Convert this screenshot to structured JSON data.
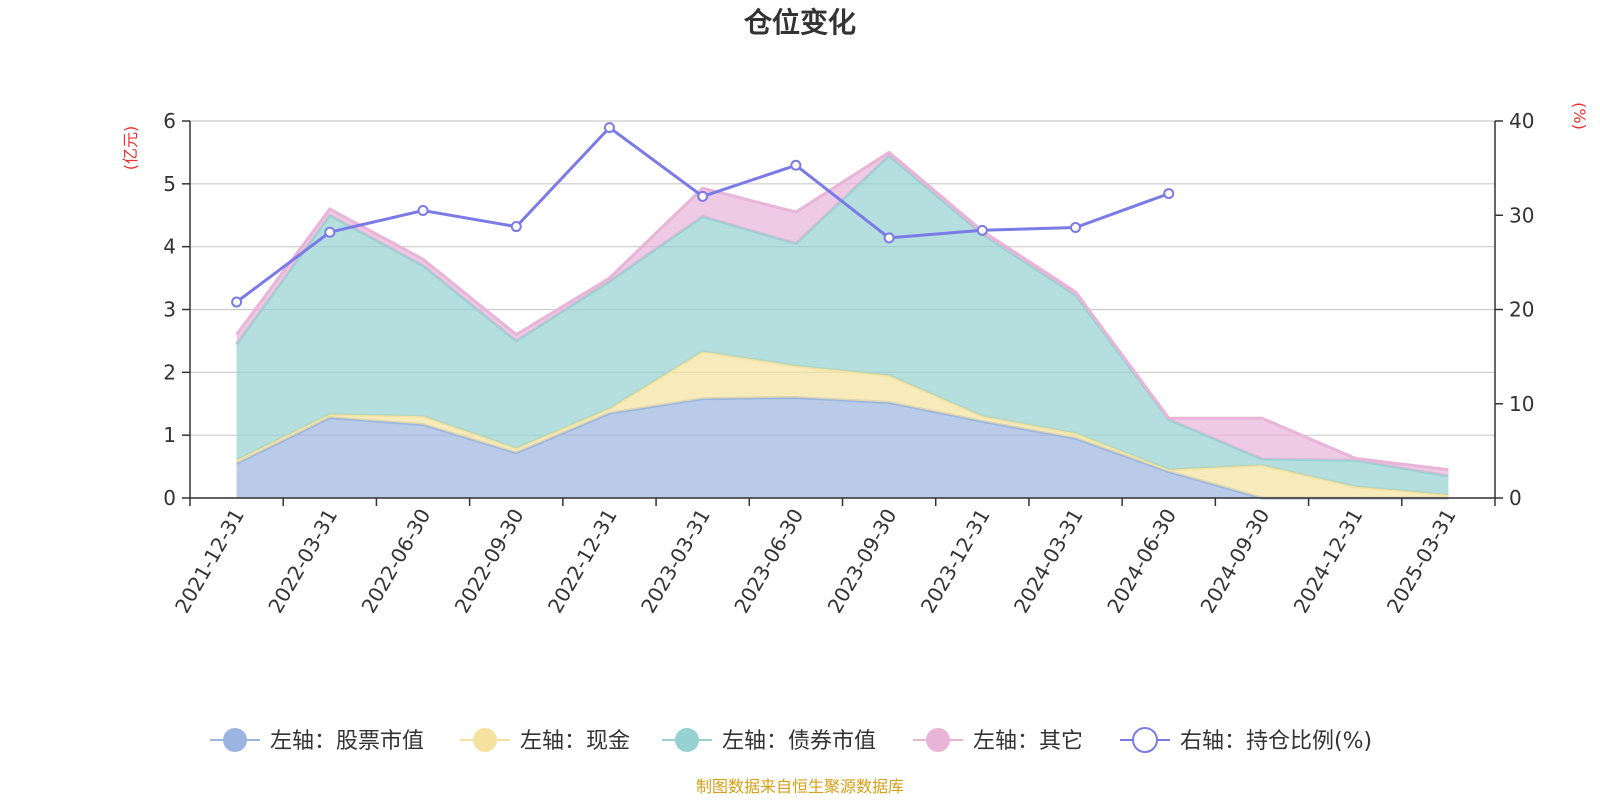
{
  "chart_data": {
    "type": "area",
    "title": "仓位变化",
    "left_unit": "(亿元)",
    "right_unit": "(%)",
    "categories": [
      "2021-12-31",
      "2022-03-31",
      "2022-06-30",
      "2022-09-30",
      "2022-12-31",
      "2023-03-31",
      "2023-06-30",
      "2023-09-30",
      "2023-12-31",
      "2024-03-31",
      "2024-06-30",
      "2024-09-30",
      "2024-12-31",
      "2025-03-31"
    ],
    "left_axis": {
      "min": 0,
      "max": 6,
      "ticks": [
        "0",
        "1",
        "2",
        "3",
        "4",
        "5",
        "6"
      ]
    },
    "right_axis": {
      "min": 0,
      "max": 40,
      "ticks": [
        "0",
        "10",
        "20",
        "30",
        "40"
      ]
    },
    "grid": true,
    "stacked": true,
    "series": [
      {
        "name": "左轴：股票市值",
        "axis": "left",
        "color": "#9bb5e0",
        "values": [
          0.55,
          1.28,
          1.17,
          0.72,
          1.35,
          1.58,
          1.6,
          1.52,
          1.22,
          0.95,
          0.42,
          0,
          0,
          0
        ]
      },
      {
        "name": "左轴：现金",
        "axis": "left",
        "color": "#f5e29e",
        "values": [
          0.05,
          0.05,
          0.13,
          0.07,
          0.07,
          0.75,
          0.5,
          0.43,
          0.08,
          0.08,
          0.03,
          0.52,
          0.18,
          0.05
        ]
      },
      {
        "name": "左轴：债券市值",
        "axis": "left",
        "color": "#96d2d2",
        "values": [
          1.85,
          3.17,
          2.4,
          1.71,
          2.03,
          2.15,
          1.95,
          3.5,
          2.9,
          2.2,
          0.8,
          0.1,
          0.42,
          0.3
        ]
      },
      {
        "name": "左轴：其它",
        "axis": "left",
        "color": "#e8b4d8",
        "values": [
          0.15,
          0.1,
          0.1,
          0.1,
          0.05,
          0.45,
          0.5,
          0.05,
          0.05,
          0.05,
          0.02,
          0.65,
          0.03,
          0.1
        ]
      },
      {
        "name": "右轴：持仓比例(%)",
        "axis": "right",
        "type": "line",
        "color": "#7b7be8",
        "values": [
          20.8,
          28.2,
          30.5,
          28.8,
          39.3,
          32.0,
          35.3,
          27.6,
          28.4,
          28.7,
          32.3,
          null,
          null,
          null
        ]
      }
    ],
    "source": "制图数据来自恒生聚源数据库",
    "source_color": "#d4a017",
    "unit_color": "#e83030"
  }
}
